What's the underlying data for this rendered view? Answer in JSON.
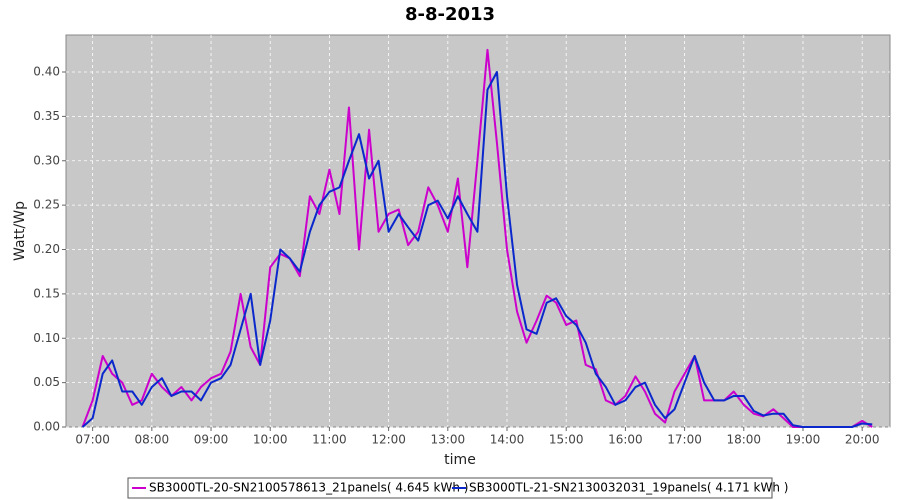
{
  "chart_data": {
    "type": "line",
    "title": "8-8-2013",
    "x_label": "time",
    "y_label": "Watt/Wp",
    "grid": true,
    "legend": "bottom",
    "xlim": [
      6.55,
      20.47
    ],
    "ylim": [
      0,
      0.4417
    ],
    "xticks": [
      {
        "value": 7,
        "label": "07:00"
      },
      {
        "value": 8,
        "label": "08:00"
      },
      {
        "value": 9,
        "label": "09:00"
      },
      {
        "value": 10,
        "label": "10:00"
      },
      {
        "value": 11,
        "label": "11:00"
      },
      {
        "value": 12,
        "label": "12:00"
      },
      {
        "value": 13,
        "label": "13:00"
      },
      {
        "value": 14,
        "label": "14:00"
      },
      {
        "value": 15,
        "label": "15:00"
      },
      {
        "value": 16,
        "label": "16:00"
      },
      {
        "value": 17,
        "label": "17:00"
      },
      {
        "value": 18,
        "label": "18:00"
      },
      {
        "value": 19,
        "label": "19:00"
      },
      {
        "value": 20,
        "label": "20:00"
      }
    ],
    "yticks": [
      {
        "value": 0,
        "label": "0.00"
      },
      {
        "value": 0.05,
        "label": "0.05"
      },
      {
        "value": 0.1,
        "label": "0.10"
      },
      {
        "value": 0.15,
        "label": "0.15"
      },
      {
        "value": 0.2,
        "label": "0.20"
      },
      {
        "value": 0.25,
        "label": "0.25"
      },
      {
        "value": 0.3,
        "label": "0.30"
      },
      {
        "value": 0.35,
        "label": "0.35"
      },
      {
        "value": 0.4,
        "label": "0.40"
      }
    ],
    "x": [
      6.83,
      7,
      7.17,
      7.33,
      7.5,
      7.67,
      7.83,
      8,
      8.17,
      8.33,
      8.5,
      8.67,
      8.83,
      9,
      9.17,
      9.33,
      9.5,
      9.67,
      9.83,
      10,
      10.17,
      10.33,
      10.5,
      10.67,
      10.83,
      11,
      11.17,
      11.33,
      11.5,
      11.67,
      11.83,
      12,
      12.17,
      12.33,
      12.5,
      12.67,
      12.83,
      13,
      13.17,
      13.33,
      13.5,
      13.67,
      13.83,
      14,
      14.17,
      14.33,
      14.5,
      14.67,
      14.83,
      15,
      15.17,
      15.33,
      15.5,
      15.67,
      15.83,
      16,
      16.17,
      16.33,
      16.5,
      16.67,
      16.83,
      17,
      17.17,
      17.33,
      17.5,
      17.67,
      17.83,
      18,
      18.17,
      18.33,
      18.5,
      18.67,
      18.83,
      19,
      19.17,
      19.33,
      19.5,
      19.67,
      19.83,
      20,
      20.17
    ],
    "series": [
      {
        "name": "SB3000TL-20-SN2100578613_21panels( 4.645 kWh )",
        "color": "#cc00cc",
        "values": [
          0,
          0.03,
          0.08,
          0.06,
          0.05,
          0.025,
          0.03,
          0.06,
          0.045,
          0.035,
          0.045,
          0.03,
          0.045,
          0.055,
          0.06,
          0.085,
          0.15,
          0.09,
          0.07,
          0.18,
          0.195,
          0.19,
          0.17,
          0.26,
          0.24,
          0.29,
          0.24,
          0.36,
          0.2,
          0.335,
          0.22,
          0.24,
          0.245,
          0.205,
          0.22,
          0.27,
          0.25,
          0.22,
          0.28,
          0.18,
          0.3,
          0.425,
          0.32,
          0.2,
          0.13,
          0.095,
          0.12,
          0.148,
          0.14,
          0.115,
          0.12,
          0.07,
          0.065,
          0.03,
          0.025,
          0.035,
          0.057,
          0.04,
          0.015,
          0.005,
          0.04,
          0.06,
          0.08,
          0.03,
          0.03,
          0.03,
          0.04,
          0.025,
          0.015,
          0.012,
          0.02,
          0.01,
          0,
          0,
          0,
          0,
          0,
          0,
          0,
          0.007,
          0
        ]
      },
      {
        "name": "SB3000TL-21-SN2130032031_19panels( 4.171 kWh )",
        "color": "#0a28cc",
        "values": [
          0,
          0.01,
          0.06,
          0.075,
          0.04,
          0.04,
          0.025,
          0.045,
          0.055,
          0.035,
          0.04,
          0.04,
          0.03,
          0.05,
          0.055,
          0.07,
          0.11,
          0.15,
          0.07,
          0.12,
          0.2,
          0.19,
          0.175,
          0.22,
          0.25,
          0.265,
          0.27,
          0.3,
          0.33,
          0.28,
          0.3,
          0.22,
          0.24,
          0.225,
          0.21,
          0.25,
          0.255,
          0.235,
          0.26,
          0.24,
          0.22,
          0.38,
          0.4,
          0.26,
          0.16,
          0.11,
          0.105,
          0.14,
          0.145,
          0.125,
          0.115,
          0.095,
          0.06,
          0.045,
          0.025,
          0.03,
          0.045,
          0.05,
          0.025,
          0.01,
          0.02,
          0.05,
          0.08,
          0.05,
          0.03,
          0.03,
          0.035,
          0.035,
          0.018,
          0.013,
          0.015,
          0.015,
          0.002,
          0,
          0,
          0,
          0,
          0,
          0,
          0.004,
          0.003
        ]
      }
    ]
  }
}
